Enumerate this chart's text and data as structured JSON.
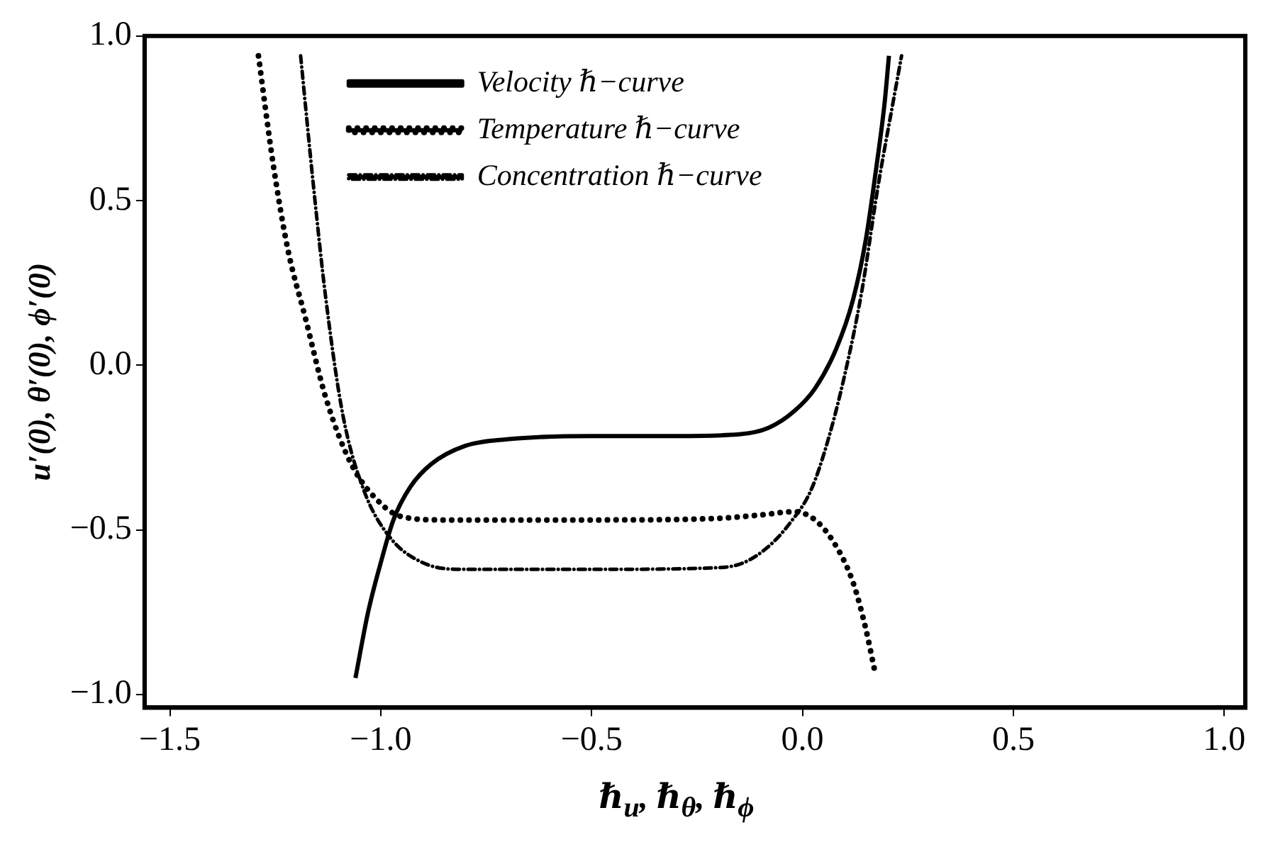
{
  "chart_data": {
    "type": "line",
    "xlabel": "ℏ$_{u}$, ℏ$_{θ}$, ℏ$_{ϕ}$",
    "ylabel": "u′(0), θ′(0), ϕ′(0)",
    "xlim": [
      -1.56,
      1.05
    ],
    "ylim": [
      -1.04,
      1.0
    ],
    "xticks": [
      {
        "value": -1.5,
        "label": "−1.5"
      },
      {
        "value": -1.0,
        "label": "−1.0"
      },
      {
        "value": -0.5,
        "label": "−0.5"
      },
      {
        "value": 0.0,
        "label": "0.0"
      },
      {
        "value": 0.5,
        "label": "0.5"
      },
      {
        "value": 1.0,
        "label": "1.0"
      }
    ],
    "yticks": [
      {
        "value": -1.0,
        "label": "−1.0"
      },
      {
        "value": -0.5,
        "label": "−0.5"
      },
      {
        "value": 0.0,
        "label": "0.0"
      },
      {
        "value": 0.5,
        "label": "0.5"
      },
      {
        "value": 1.0,
        "label": "1.0"
      }
    ],
    "grid": false,
    "legend": "top left",
    "marker": "none",
    "series": [
      {
        "name": "Velocity ℏ−curve",
        "color": "#000000",
        "line_style": "solid",
        "x": [
          -1.06,
          -1.03,
          -1.0,
          -0.97,
          -0.93,
          -0.88,
          -0.8,
          -0.7,
          -0.5,
          -0.3,
          -0.15,
          -0.08,
          -0.02,
          0.03,
          0.08,
          0.12,
          0.15,
          0.175,
          0.195,
          0.205
        ],
        "values": [
          -0.95,
          -0.75,
          -0.6,
          -0.47,
          -0.37,
          -0.3,
          -0.245,
          -0.225,
          -0.215,
          -0.215,
          -0.21,
          -0.19,
          -0.14,
          -0.07,
          0.05,
          0.2,
          0.38,
          0.6,
          0.8,
          0.94
        ]
      },
      {
        "name": "Temperature ℏ−curve",
        "color": "#000000",
        "line_style": "dotted",
        "x": [
          -1.29,
          -1.255,
          -1.22,
          -1.18,
          -1.13,
          -1.07,
          -1.0,
          -0.95,
          -0.85,
          -0.5,
          -0.2,
          -0.1,
          -0.02,
          0.03,
          0.08,
          0.12,
          0.15,
          0.17
        ],
        "values": [
          0.94,
          0.61,
          0.35,
          0.15,
          -0.1,
          -0.3,
          -0.42,
          -0.46,
          -0.47,
          -0.47,
          -0.465,
          -0.455,
          -0.445,
          -0.47,
          -0.55,
          -0.66,
          -0.8,
          -0.92
        ]
      },
      {
        "name": "Concentration ℏ−curve",
        "color": "#000000",
        "line_style": "dashed",
        "x": [
          -1.19,
          -1.16,
          -1.13,
          -1.09,
          -1.04,
          -0.98,
          -0.9,
          -0.8,
          -0.5,
          -0.2,
          -0.14,
          -0.08,
          -0.03,
          0.02,
          0.06,
          0.1,
          0.14,
          0.18,
          0.215,
          0.235
        ],
        "values": [
          0.94,
          0.55,
          0.2,
          -0.15,
          -0.38,
          -0.52,
          -0.6,
          -0.62,
          -0.62,
          -0.615,
          -0.6,
          -0.55,
          -0.48,
          -0.38,
          -0.23,
          -0.03,
          0.22,
          0.55,
          0.8,
          0.94
        ]
      }
    ]
  }
}
